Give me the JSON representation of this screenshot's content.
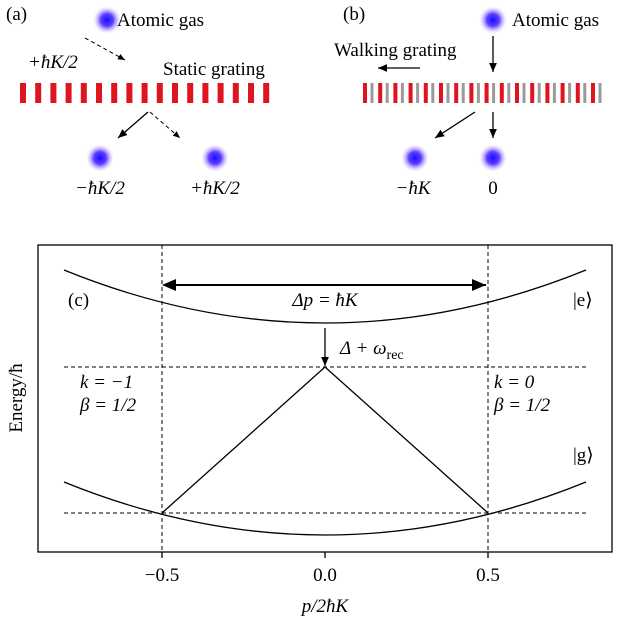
{
  "panel_a": {
    "label": "(a)",
    "source": "Atomic gas",
    "incoming": "+ħK/2",
    "grating": "Static grating",
    "outputs": [
      "−ħK/2",
      "+ħK/2"
    ]
  },
  "panel_b": {
    "label": "(b)",
    "source": "Atomic gas",
    "grating": "Walking grating",
    "outputs": [
      "−ħK",
      "0"
    ]
  },
  "panel_c": {
    "label": "(c)",
    "momentum_transfer": "Δp = ħK",
    "detuning": "Δ + ω",
    "detuning_sub": "rec",
    "excited": "|e⟩",
    "ground": "|g⟩",
    "left_k": "k = −1",
    "left_beta": "β = 1/2",
    "right_k": "k = 0",
    "right_beta": "β = 1/2",
    "y_label": "Energy/ħ",
    "x_label": "p/2ħK",
    "x_ticks": [
      "−0.5",
      "0.0",
      "0.5"
    ]
  }
}
